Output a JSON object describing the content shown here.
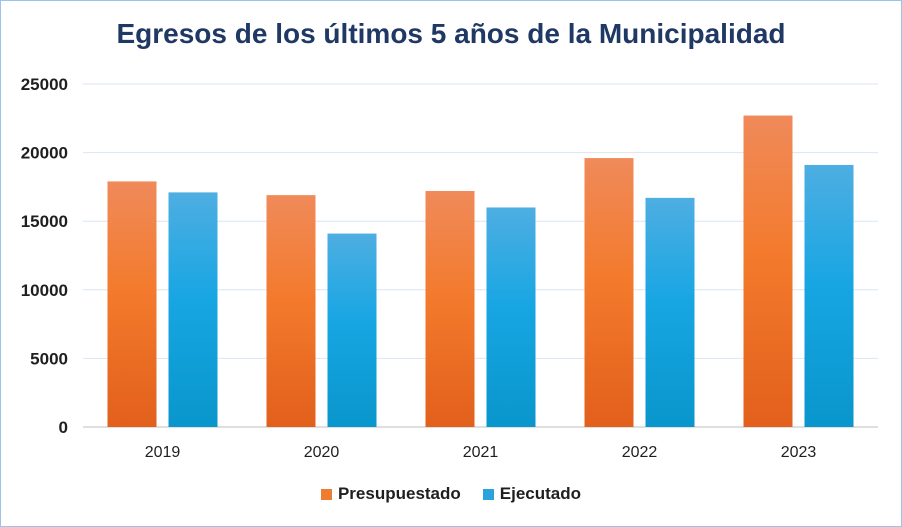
{
  "chart_data": {
    "type": "bar",
    "title": "Egresos de los últimos 5 años de la Municipalidad",
    "xlabel": "",
    "ylabel": "",
    "categories": [
      "2019",
      "2020",
      "2021",
      "2022",
      "2023"
    ],
    "ylim": [
      0,
      25000
    ],
    "yticks": [
      "0",
      "5000",
      "10000",
      "15000",
      "20000",
      "25000"
    ],
    "grid": true,
    "legend_position": "bottom",
    "series": [
      {
        "name": "Presupuestado",
        "color": "#ed7d31",
        "values": [
          17900,
          16900,
          17200,
          19600,
          22700
        ]
      },
      {
        "name": "Ejecutado",
        "color": "#29a3dc",
        "values": [
          17100,
          14100,
          16000,
          16700,
          19100
        ]
      }
    ]
  }
}
